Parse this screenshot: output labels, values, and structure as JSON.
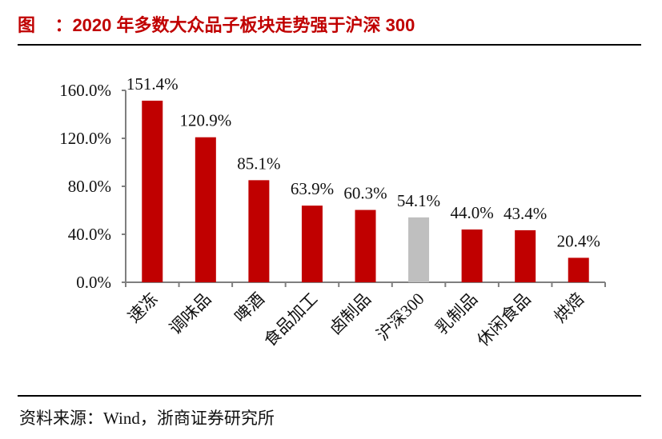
{
  "header": {
    "title": "图    ：2020 年多数大众品子板块走势强于沪深 300"
  },
  "footer": {
    "source": "资料来源：Wind，浙商证券研究所"
  },
  "colors": {
    "title": "#c00000",
    "bar_default": "#c00000",
    "bar_benchmark": "#bfbfbf",
    "axis": "#7f7f7f"
  },
  "chart_data": {
    "type": "bar",
    "title": "2020 年多数大众品子板块走势强于沪深 300",
    "xlabel": "",
    "ylabel": "",
    "ylim": [
      0,
      160
    ],
    "yticks": [
      "0.0%",
      "40.0%",
      "80.0%",
      "120.0%",
      "160.0%"
    ],
    "ytick_values": [
      0,
      40,
      80,
      120,
      160
    ],
    "grid": false,
    "legend": "none",
    "categories": [
      "速冻",
      "调味品",
      "啤酒",
      "食品加工",
      "卤制品",
      "沪深300",
      "乳制品",
      "休闲食品",
      "烘焙"
    ],
    "values": [
      151.4,
      120.9,
      85.1,
      63.9,
      60.3,
      54.1,
      44.0,
      43.4,
      20.4
    ],
    "value_labels": [
      "151.4%",
      "120.9%",
      "85.1%",
      "63.9%",
      "60.3%",
      "54.1%",
      "44.0%",
      "43.4%",
      "20.4%"
    ],
    "highlight_index": 5,
    "bar_colors": [
      "#c00000",
      "#c00000",
      "#c00000",
      "#c00000",
      "#c00000",
      "#bfbfbf",
      "#c00000",
      "#c00000",
      "#c00000"
    ]
  }
}
